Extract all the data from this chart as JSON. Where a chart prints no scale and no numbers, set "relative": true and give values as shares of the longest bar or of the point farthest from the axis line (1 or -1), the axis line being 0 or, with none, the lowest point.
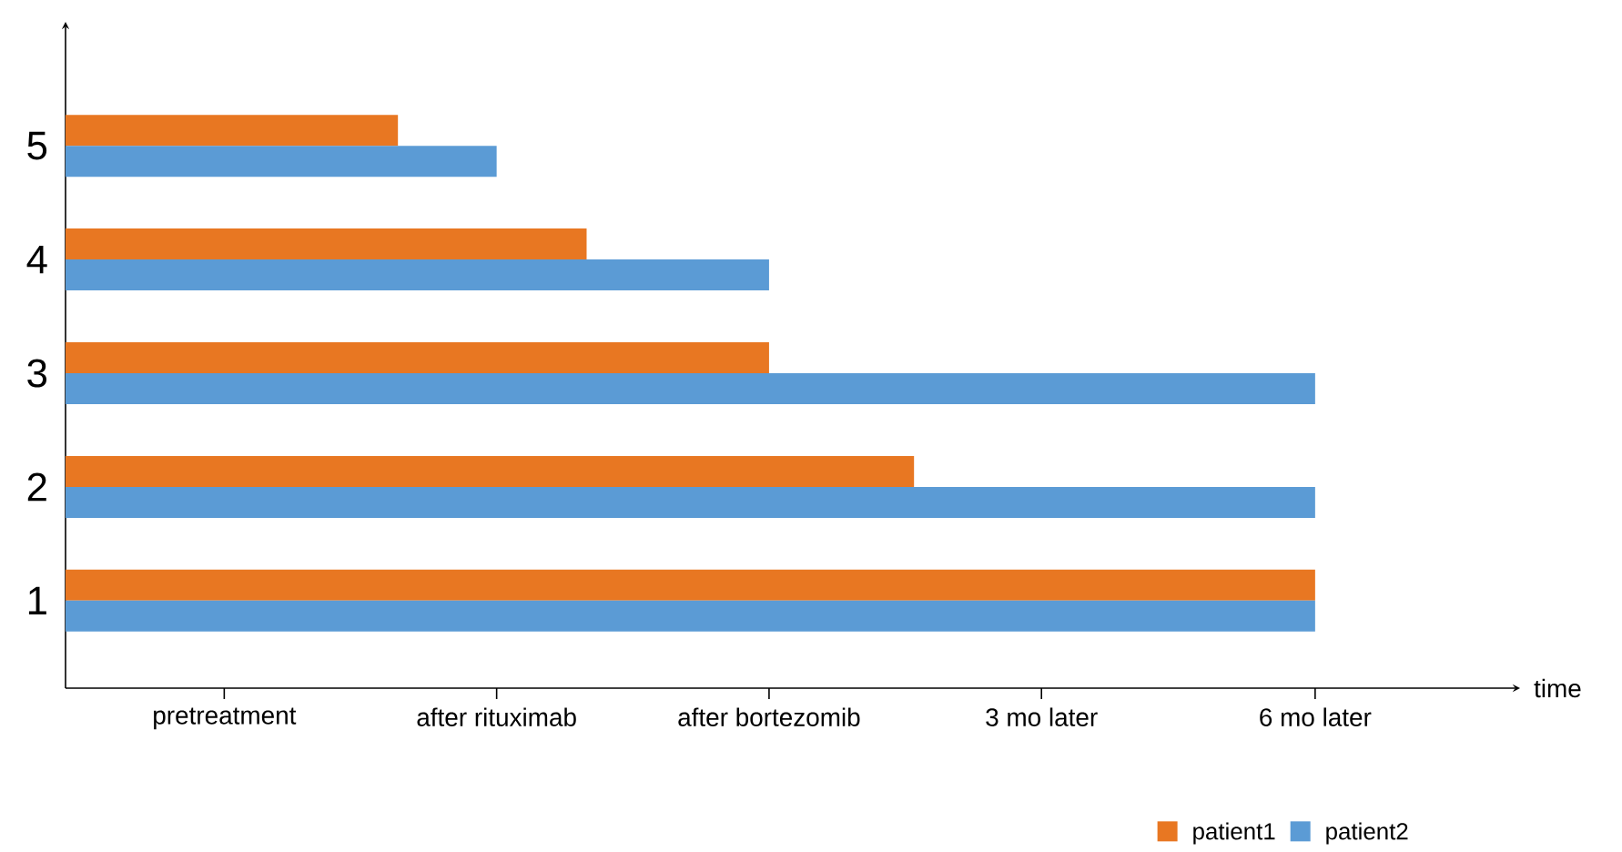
{
  "chart_data": {
    "type": "bar",
    "orientation": "horizontal",
    "relative": true,
    "categories": [
      "5",
      "4",
      "3",
      "2",
      "1"
    ],
    "series": [
      {
        "name": "patient1",
        "color": "#e87722",
        "values": [
          0.266,
          0.417,
          0.563,
          0.679,
          1
        ]
      },
      {
        "name": "patient2",
        "color": "#5b9bd5",
        "values": [
          0.345,
          0.563,
          1,
          1,
          1
        ]
      }
    ],
    "annotations": [
      "pretreatment",
      {
        "text": "after rituximab",
        "x": 0.345
      },
      {
        "text": "after bortezomib",
        "x": 0.563
      },
      "3 mo later",
      {
        "text": "6 mo later",
        "x": 1
      },
      "time"
    ],
    "legend": "bottom right",
    "grid": false
  }
}
